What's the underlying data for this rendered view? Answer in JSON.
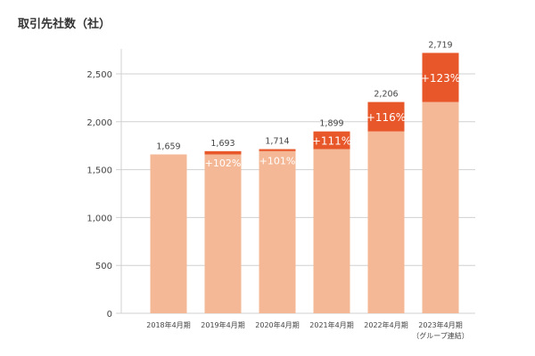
{
  "chart_data": {
    "type": "bar",
    "title": "取引先社数（社）",
    "categories": [
      "2018年4月期",
      "2019年4月期",
      "2020年4月期",
      "2021年4月期",
      "2022年4月期",
      "2023年4月期"
    ],
    "category_notes": [
      "",
      "",
      "",
      "",
      "",
      "（グループ連結）"
    ],
    "values": [
      1659,
      1693,
      1714,
      1899,
      2206,
      2719
    ],
    "value_labels": [
      "1,659",
      "1,693",
      "1,714",
      "1,899",
      "2,206",
      "2,719"
    ],
    "growth_labels": [
      "",
      "+102%",
      "+101%",
      "+111%",
      "+116%",
      "+123%"
    ],
    "yticks": [
      0,
      500,
      1000,
      1500,
      2000,
      2500
    ],
    "ytick_labels": [
      "0",
      "500",
      "1,000",
      "1,500",
      "2,000",
      "2,500"
    ],
    "ylim": [
      0,
      2750
    ],
    "grid": true,
    "xlabel": "",
    "ylabel": "",
    "colors": {
      "base": "#f5b896",
      "increase": "#e8572a",
      "grid": "#d0d0d0",
      "text": "#444444"
    }
  }
}
